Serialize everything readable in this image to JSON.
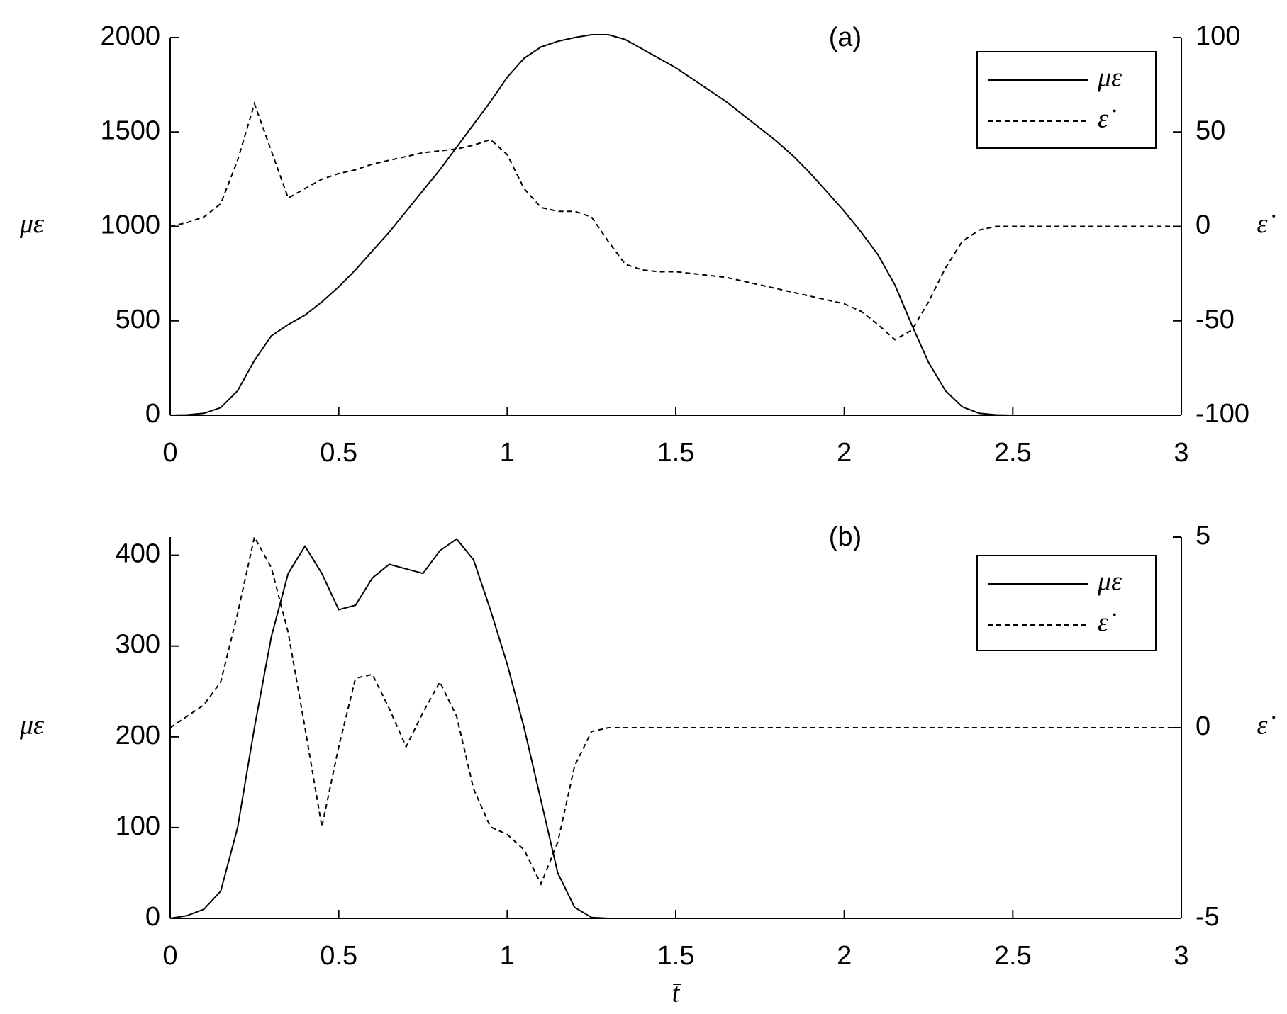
{
  "chart_data": [
    {
      "type": "line",
      "annotation": "(a)",
      "ylabel": "με",
      "y2label": "ε̇",
      "x": [
        0,
        0.05,
        0.1,
        0.15,
        0.2,
        0.25,
        0.3,
        0.35,
        0.4,
        0.45,
        0.5,
        0.55,
        0.6,
        0.65,
        0.7,
        0.75,
        0.8,
        0.85,
        0.9,
        0.95,
        1.0,
        1.05,
        1.1,
        1.15,
        1.2,
        1.25,
        1.3,
        1.35,
        1.4,
        1.45,
        1.5,
        1.55,
        1.6,
        1.65,
        1.7,
        1.75,
        1.8,
        1.85,
        1.9,
        1.95,
        2.0,
        2.05,
        2.1,
        2.15,
        2.2,
        2.25,
        2.3,
        2.35,
        2.4,
        2.45,
        2.5,
        2.75,
        3
      ],
      "series": [
        {
          "name": "με",
          "color": "#000000",
          "linestyle": "solid",
          "axis": "y",
          "values": [
            0,
            2,
            10,
            40,
            130,
            290,
            420,
            480,
            530,
            600,
            680,
            770,
            870,
            970,
            1080,
            1190,
            1300,
            1420,
            1540,
            1660,
            1790,
            1890,
            1950,
            1980,
            2000,
            2015,
            2015,
            1990,
            1940,
            1890,
            1840,
            1780,
            1720,
            1660,
            1590,
            1520,
            1450,
            1370,
            1280,
            1180,
            1080,
            970,
            850,
            690,
            480,
            280,
            130,
            45,
            10,
            2,
            0,
            0,
            0
          ]
        },
        {
          "name": "ε̇",
          "color": "#000000",
          "linestyle": "dashed",
          "axis": "y2",
          "values": [
            0,
            2,
            5,
            12,
            35,
            65,
            40,
            15,
            20,
            25,
            28,
            30,
            33,
            35,
            37,
            39,
            40,
            41,
            43,
            46,
            38,
            20,
            10,
            8,
            8,
            5,
            -8,
            -20,
            -23,
            -24,
            -24,
            -25,
            -26,
            -27,
            -29,
            -31,
            -33,
            -35,
            -37,
            -39,
            -41,
            -45,
            -52,
            -60,
            -55,
            -40,
            -22,
            -8,
            -2,
            0,
            0,
            0,
            0
          ]
        }
      ],
      "xlim": [
        0,
        3
      ],
      "xticks": [
        0,
        0.5,
        1,
        1.5,
        2,
        2.5,
        3
      ],
      "ylim": [
        0,
        2000
      ],
      "yticks": [
        0,
        500,
        1000,
        1500,
        2000
      ],
      "y2lim": [
        -100,
        100
      ],
      "y2ticks": [
        -100,
        -50,
        0,
        50,
        100
      ],
      "legend": "upper right"
    },
    {
      "type": "line",
      "annotation": "(b)",
      "ylabel": "με",
      "y2label": "ε̇",
      "xlabel": "t̄",
      "x": [
        0,
        0.05,
        0.1,
        0.15,
        0.2,
        0.25,
        0.3,
        0.35,
        0.4,
        0.45,
        0.5,
        0.55,
        0.6,
        0.65,
        0.7,
        0.75,
        0.8,
        0.85,
        0.9,
        0.95,
        1.0,
        1.05,
        1.1,
        1.15,
        1.2,
        1.25,
        1.3,
        1.5,
        2.0,
        2.5,
        3
      ],
      "series": [
        {
          "name": "με",
          "color": "#000000",
          "linestyle": "solid",
          "axis": "y",
          "values": [
            0,
            3,
            10,
            30,
            100,
            210,
            310,
            380,
            410,
            380,
            340,
            345,
            375,
            390,
            385,
            380,
            405,
            418,
            395,
            340,
            280,
            210,
            130,
            50,
            12,
            1,
            0,
            0,
            0,
            0,
            0
          ]
        },
        {
          "name": "ε̇",
          "color": "#000000",
          "linestyle": "dashed",
          "axis": "y2",
          "values": [
            0,
            0.3,
            0.6,
            1.2,
            3,
            5,
            4.2,
            2.5,
            0,
            -2.6,
            -0.5,
            1.3,
            1.4,
            0.5,
            -0.5,
            0.4,
            1.2,
            0.3,
            -1.6,
            -2.6,
            -2.8,
            -3.2,
            -4.1,
            -3,
            -1,
            -0.1,
            0,
            0,
            0,
            0,
            0
          ]
        }
      ],
      "xlim": [
        0,
        3
      ],
      "xticks": [
        0,
        0.5,
        1,
        1.5,
        2,
        2.5,
        3
      ],
      "ylim": [
        0,
        420
      ],
      "yticks": [
        0,
        100,
        200,
        300,
        400
      ],
      "y2lim": [
        -5,
        5
      ],
      "y2ticks": [
        -5,
        0,
        5
      ],
      "legend": "upper right"
    }
  ]
}
